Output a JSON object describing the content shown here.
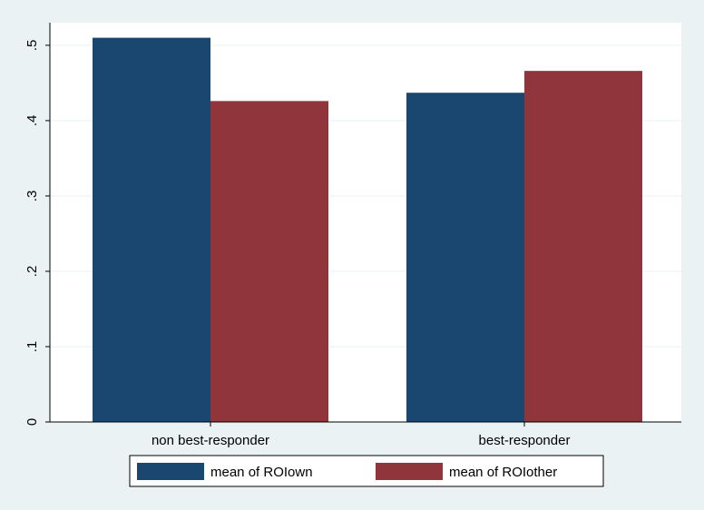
{
  "chart_data": {
    "type": "bar",
    "categories": [
      "non best-responder",
      "best-responder"
    ],
    "series": [
      {
        "name": "mean of ROIown",
        "values": [
          0.51,
          0.437
        ],
        "color": "#1a476f"
      },
      {
        "name": "mean of ROIother",
        "values": [
          0.426,
          0.466
        ],
        "color": "#90353b"
      }
    ],
    "ylim": [
      0,
      0.53
    ],
    "yticks": [
      0,
      0.1,
      0.2,
      0.3,
      0.4,
      0.5
    ],
    "ytick_labels": [
      "0",
      ".1",
      ".2",
      ".3",
      ".4",
      ".5"
    ],
    "title": "",
    "xlabel": "",
    "ylabel": "",
    "grid": true,
    "legend": {
      "position": "bottom"
    },
    "colors": {
      "background": "#eaf2f3",
      "plot_area": "#ffffff",
      "grid": "#eaf2f3"
    }
  }
}
